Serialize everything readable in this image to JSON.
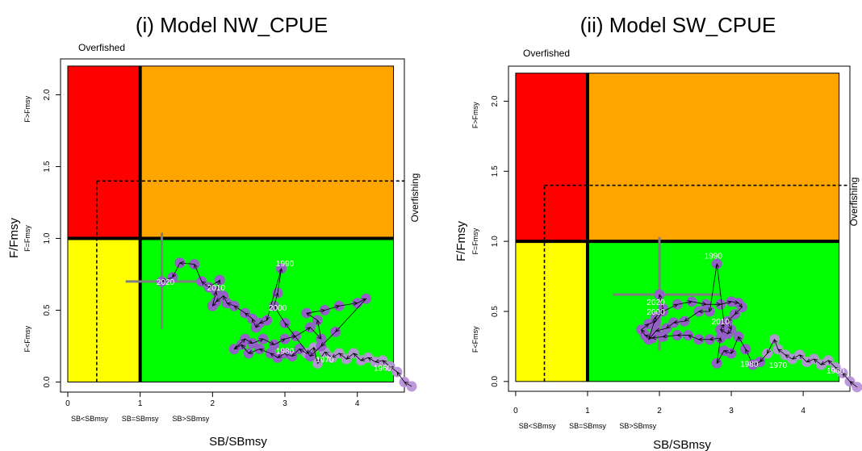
{
  "colors": {
    "red_zone": "#ff0000",
    "orange_zone": "#ffa500",
    "yellow_zone": "#ffff00",
    "green_zone": "#00ff00",
    "points": "#9b59d0",
    "points_light": "#b892d8",
    "path": "#000000",
    "cross": "#808080",
    "year_label": "#ffffff"
  },
  "chart_data": [
    {
      "type": "scatter",
      "title": "(i)  Model NW_CPUE",
      "xlabel": "SB/SBmsy",
      "ylabel": "F/Fmsy",
      "xlim": [
        -0.1,
        4.65
      ],
      "ylim": [
        -0.07,
        2.25
      ],
      "xticks": [
        0,
        1,
        2,
        3,
        4
      ],
      "yticks": [
        0.0,
        0.5,
        1.0,
        1.5,
        2.0
      ],
      "xtick_labels": [
        "0",
        "1",
        "2",
        "3",
        "4"
      ],
      "ytick_labels": [
        "0.0",
        "0.5",
        "1.0",
        "1.5",
        "2.0"
      ],
      "x_zone_labels": [
        {
          "x": 0.3,
          "text": "SB<SBmsy"
        },
        {
          "x": 1.0,
          "text": "SB=SBmsy"
        },
        {
          "x": 1.7,
          "text": "SB>SBmsy"
        }
      ],
      "y_zone_labels": [
        {
          "y": 0.3,
          "text": "F<Fmsy"
        },
        {
          "y": 1.0,
          "text": "F=Fmsy"
        },
        {
          "y": 1.9,
          "text": "F>Fmsy"
        }
      ],
      "overfished_label": "Overfished",
      "overfishing_label": "Overfishing",
      "zone_limits": {
        "xmax": 4.5,
        "ymax": 2.2
      },
      "reference": {
        "x": 0.4,
        "y": 1.4
      },
      "current": {
        "x": 1.3,
        "y": 0.7,
        "x_lo": 0.8,
        "x_hi": 1.8,
        "y_lo": 0.37,
        "y_hi": 1.04
      },
      "points": [
        [
          4.75,
          -0.03
        ],
        [
          4.65,
          0.0
        ],
        [
          4.55,
          0.07
        ],
        [
          4.45,
          0.11
        ],
        [
          4.35,
          0.15
        ],
        [
          4.25,
          0.14
        ],
        [
          4.15,
          0.17
        ],
        [
          4.05,
          0.15
        ],
        [
          3.95,
          0.2
        ],
        [
          3.85,
          0.16
        ],
        [
          3.75,
          0.2
        ],
        [
          3.65,
          0.17
        ],
        [
          3.55,
          0.21
        ],
        [
          3.45,
          0.13
        ],
        [
          3.4,
          0.24
        ],
        [
          3.3,
          0.2
        ],
        [
          3.2,
          0.23
        ],
        [
          3.1,
          0.18
        ],
        [
          3.0,
          0.2
        ],
        [
          2.9,
          0.17
        ],
        [
          2.8,
          0.2
        ],
        [
          2.65,
          0.23
        ],
        [
          2.5,
          0.2
        ],
        [
          2.4,
          0.26
        ],
        [
          2.3,
          0.23
        ],
        [
          2.45,
          0.3
        ],
        [
          2.55,
          0.27
        ],
        [
          2.7,
          0.3
        ],
        [
          2.85,
          0.26
        ],
        [
          3.0,
          0.3
        ],
        [
          3.15,
          0.32
        ],
        [
          3.35,
          0.38
        ],
        [
          3.5,
          0.3
        ],
        [
          3.45,
          0.43
        ],
        [
          3.3,
          0.48
        ],
        [
          3.55,
          0.5
        ],
        [
          3.75,
          0.53
        ],
        [
          4.0,
          0.55
        ],
        [
          4.12,
          0.58
        ],
        [
          3.7,
          0.35
        ],
        [
          3.5,
          0.25
        ],
        [
          3.35,
          0.18
        ],
        [
          3.0,
          0.41
        ],
        [
          2.85,
          0.53
        ],
        [
          2.9,
          0.62
        ],
        [
          2.95,
          0.79
        ],
        [
          2.75,
          0.43
        ],
        [
          2.65,
          0.41
        ],
        [
          2.6,
          0.38
        ],
        [
          2.55,
          0.44
        ],
        [
          2.45,
          0.48
        ],
        [
          2.3,
          0.53
        ],
        [
          2.2,
          0.55
        ],
        [
          2.15,
          0.6
        ],
        [
          2.05,
          0.56
        ],
        [
          2.0,
          0.53
        ],
        [
          2.05,
          0.63
        ],
        [
          2.1,
          0.71
        ],
        [
          1.95,
          0.66
        ],
        [
          1.85,
          0.7
        ],
        [
          1.75,
          0.82
        ],
        [
          1.55,
          0.83
        ],
        [
          1.45,
          0.73
        ],
        [
          1.3,
          0.7
        ]
      ],
      "year_labels": [
        {
          "x": 4.35,
          "y": 0.1,
          "text": "1960"
        },
        {
          "x": 3.55,
          "y": 0.16,
          "text": "1970"
        },
        {
          "x": 3.0,
          "y": 0.22,
          "text": "1980"
        },
        {
          "x": 3.0,
          "y": 0.83,
          "text": "1990"
        },
        {
          "x": 2.9,
          "y": 0.52,
          "text": "2000"
        },
        {
          "x": 2.05,
          "y": 0.66,
          "text": "2010"
        },
        {
          "x": 1.35,
          "y": 0.7,
          "text": "2020"
        }
      ]
    },
    {
      "type": "scatter",
      "title": "(ii) Model SW_CPUE",
      "xlabel": "SB/SBmsy",
      "ylabel": "F/Fmsy",
      "xlim": [
        -0.1,
        4.65
      ],
      "ylim": [
        -0.07,
        2.25
      ],
      "xticks": [
        0,
        1,
        2,
        3,
        4
      ],
      "yticks": [
        0.0,
        0.5,
        1.0,
        1.5,
        2.0
      ],
      "xtick_labels": [
        "0",
        "1",
        "2",
        "3",
        "4"
      ],
      "ytick_labels": [
        "0.0",
        "0.5",
        "1.0",
        "1.5",
        "2.0"
      ],
      "x_zone_labels": [
        {
          "x": 0.3,
          "text": "SB<SBmsy"
        },
        {
          "x": 1.0,
          "text": "SB=SBmsy"
        },
        {
          "x": 1.7,
          "text": "SB>SBmsy"
        }
      ],
      "y_zone_labels": [
        {
          "y": 0.3,
          "text": "F<Fmsy"
        },
        {
          "y": 1.0,
          "text": "F=Fmsy"
        },
        {
          "y": 1.9,
          "text": "F>Fmsy"
        }
      ],
      "overfished_label": "Overfished",
      "overfishing_label": "Overfishing",
      "zone_limits": {
        "xmax": 4.5,
        "ymax": 2.2
      },
      "reference": {
        "x": 0.4,
        "y": 1.4
      },
      "current": {
        "x": 2.0,
        "y": 0.62,
        "x_lo": 1.35,
        "x_hi": 2.85,
        "y_lo": 0.22,
        "y_hi": 1.03
      },
      "points": [
        [
          4.75,
          -0.04
        ],
        [
          4.65,
          0.0
        ],
        [
          4.55,
          0.06
        ],
        [
          4.45,
          0.1
        ],
        [
          4.35,
          0.15
        ],
        [
          4.25,
          0.12
        ],
        [
          4.15,
          0.16
        ],
        [
          4.05,
          0.14
        ],
        [
          3.95,
          0.19
        ],
        [
          3.85,
          0.16
        ],
        [
          3.75,
          0.19
        ],
        [
          3.65,
          0.23
        ],
        [
          3.6,
          0.3
        ],
        [
          3.5,
          0.2
        ],
        [
          3.4,
          0.14
        ],
        [
          3.3,
          0.12
        ],
        [
          3.2,
          0.23
        ],
        [
          3.1,
          0.32
        ],
        [
          3.0,
          0.2
        ],
        [
          2.9,
          0.22
        ],
        [
          2.8,
          0.13
        ],
        [
          2.85,
          0.31
        ],
        [
          2.7,
          0.3
        ],
        [
          2.55,
          0.3
        ],
        [
          2.4,
          0.33
        ],
        [
          2.25,
          0.33
        ],
        [
          2.05,
          0.32
        ],
        [
          1.9,
          0.31
        ],
        [
          1.8,
          0.33
        ],
        [
          1.75,
          0.37
        ],
        [
          1.85,
          0.41
        ],
        [
          1.95,
          0.43
        ],
        [
          2.05,
          0.5
        ],
        [
          2.25,
          0.55
        ],
        [
          2.45,
          0.57
        ],
        [
          2.65,
          0.55
        ],
        [
          2.85,
          0.55
        ],
        [
          3.0,
          0.57
        ],
        [
          3.1,
          0.56
        ],
        [
          3.15,
          0.53
        ],
        [
          3.05,
          0.48
        ],
        [
          2.95,
          0.43
        ],
        [
          3.0,
          0.37
        ],
        [
          2.95,
          0.34
        ],
        [
          2.85,
          0.37
        ],
        [
          2.9,
          0.41
        ],
        [
          2.8,
          0.84
        ],
        [
          2.7,
          0.5
        ],
        [
          2.55,
          0.5
        ],
        [
          2.35,
          0.43
        ],
        [
          2.2,
          0.42
        ],
        [
          2.1,
          0.38
        ],
        [
          1.95,
          0.36
        ],
        [
          1.85,
          0.3
        ],
        [
          1.95,
          0.46
        ],
        [
          2.05,
          0.52
        ],
        [
          2.0,
          0.62
        ]
      ],
      "year_labels": [
        {
          "x": 4.45,
          "y": 0.08,
          "text": "1960"
        },
        {
          "x": 3.65,
          "y": 0.12,
          "text": "1970"
        },
        {
          "x": 3.25,
          "y": 0.13,
          "text": "1980"
        },
        {
          "x": 2.75,
          "y": 0.9,
          "text": "1990"
        },
        {
          "x": 2.85,
          "y": 0.43,
          "text": "2010"
        },
        {
          "x": 1.95,
          "y": 0.5,
          "text": "2000"
        },
        {
          "x": 1.95,
          "y": 0.57,
          "text": "2020"
        }
      ]
    }
  ]
}
